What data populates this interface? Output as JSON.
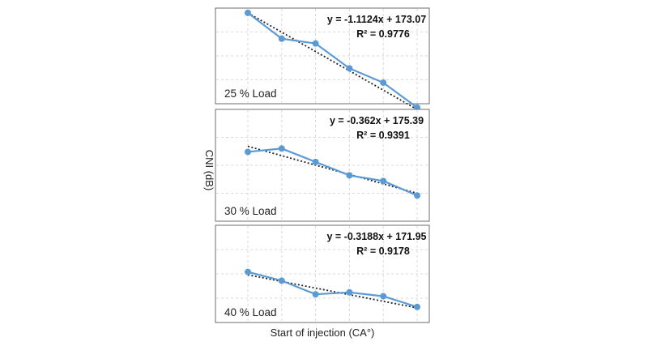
{
  "chart_data": {
    "type": "line",
    "xlabel": "Start of injection (CA°)",
    "ylabel": "CNI (dB)",
    "panels": [
      {
        "label": "25 % Load",
        "equation": "y = -1.1124x + 173.07",
        "r2": "R² = 0.9776",
        "x": [
          1,
          2,
          3,
          4,
          5,
          6
        ],
        "values": [
          0.95,
          0.68,
          0.63,
          0.37,
          0.22,
          -0.04
        ],
        "trend": [
          0.95,
          -0.06
        ]
      },
      {
        "label": "30 % Load",
        "equation": "y = -0.362x + 175.39",
        "r2": "R² = 0.9391",
        "x": [
          1,
          2,
          3,
          4,
          5,
          6
        ],
        "values": [
          0.62,
          0.65,
          0.53,
          0.41,
          0.36,
          0.23
        ],
        "trend": [
          0.67,
          0.25
        ]
      },
      {
        "label": "40 % Load",
        "equation": "y = -0.3188x + 171.95",
        "r2": "R² = 0.9178",
        "x": [
          1,
          2,
          3,
          4,
          5,
          6
        ],
        "values": [
          0.52,
          0.43,
          0.29,
          0.31,
          0.27,
          0.16
        ],
        "trend": [
          0.49,
          0.15
        ]
      }
    ],
    "grid": true,
    "legend": "none",
    "colors": {
      "series": "#5b9bd5",
      "trend": "#222222"
    }
  }
}
